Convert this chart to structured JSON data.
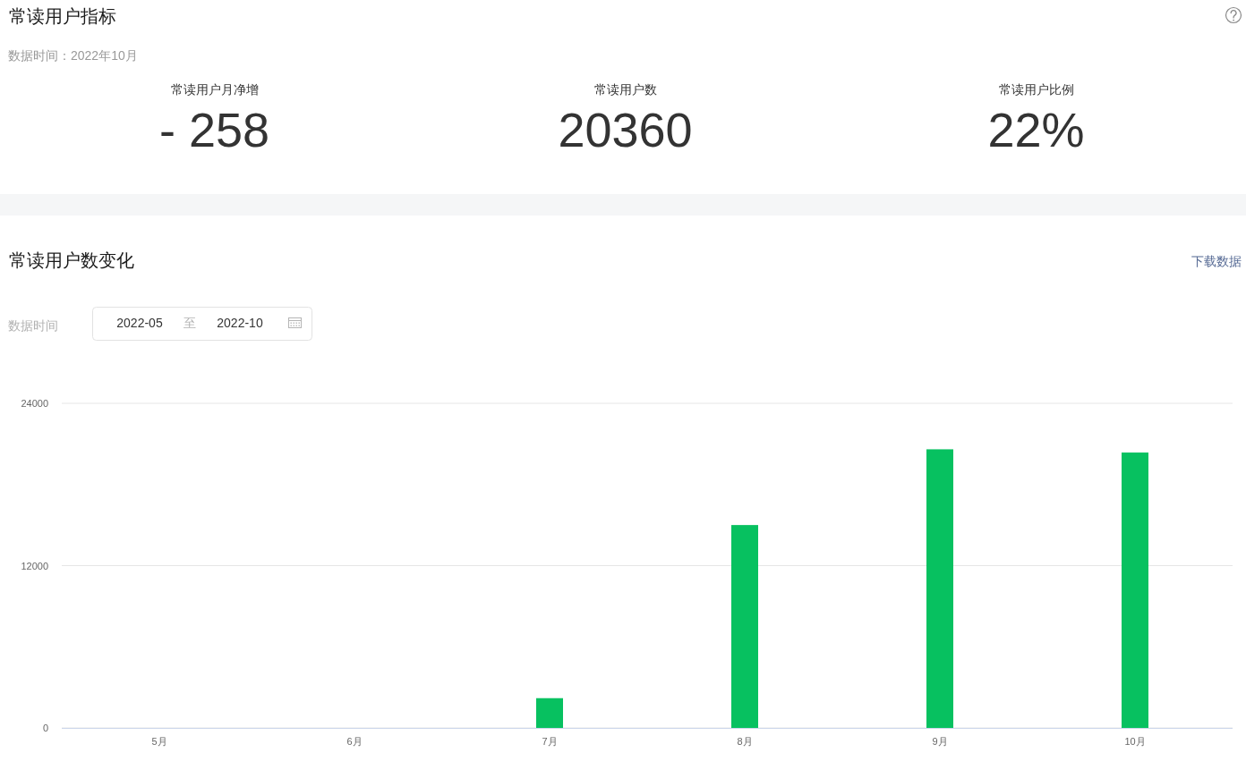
{
  "chart_data": [
    {
      "type": "other",
      "title": "常读用户指标",
      "subtitle": "数据时间：2022年10月",
      "annotations": [
        "常读用户月净增",
        "- 258",
        "常读用户数",
        "20360",
        "常读用户比例",
        "22%"
      ]
    },
    {
      "type": "bar",
      "title": "常读用户数变化",
      "annotations": [
        "下载数据",
        "数据时间",
        "2022-05",
        "至",
        "2022-10"
      ],
      "categories": [
        "5月",
        "6月",
        "7月",
        "8月",
        "9月",
        "10月"
      ],
      "values": [
        0,
        0,
        2200,
        15000,
        20600,
        20360
      ],
      "color": "#07c160",
      "ylim": [
        0,
        24000
      ],
      "yticks": [
        0,
        12000,
        24000
      ],
      "grid": "y"
    }
  ]
}
